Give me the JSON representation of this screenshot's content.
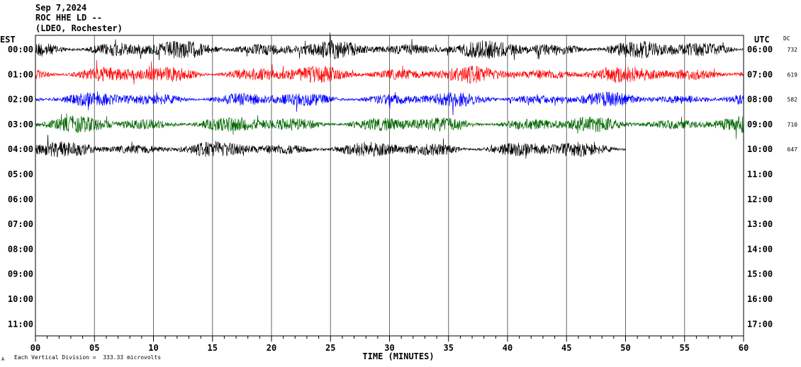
{
  "header": {
    "date": "Sep 7,2024",
    "station": "ROC HHE LD --",
    "location": "(LDEO, Rochester)"
  },
  "left_axis_title": "EST",
  "right_axis_title": "UTC",
  "dc_title": "DC",
  "footer": {
    "scale_note": "Each Vertical Division =  333.33 microvolts",
    "corner_mark": "A"
  },
  "chart_data": {
    "type": "line",
    "title": "",
    "xlabel": "TIME (MINUTES)",
    "xlim": [
      0,
      60
    ],
    "x_ticks": [
      "00",
      "05",
      "10",
      "15",
      "20",
      "25",
      "30",
      "35",
      "40",
      "45",
      "50",
      "55",
      "60"
    ],
    "est_ticks": [
      "00:00",
      "01:00",
      "02:00",
      "03:00",
      "04:00",
      "05:00",
      "06:00",
      "07:00",
      "08:00",
      "09:00",
      "10:00",
      "11:00"
    ],
    "utc_ticks": [
      "06:00",
      "07:00",
      "08:00",
      "09:00",
      "10:00",
      "11:00",
      "12:00",
      "13:00",
      "14:00",
      "15:00",
      "16:00",
      "17:00"
    ],
    "series": [
      {
        "hour_est": "00:00",
        "color": "#000000",
        "dc_offset": "732",
        "minutes_recorded": 60
      },
      {
        "hour_est": "01:00",
        "color": "#ff0000",
        "dc_offset": "619",
        "minutes_recorded": 60
      },
      {
        "hour_est": "02:00",
        "color": "#0000ff",
        "dc_offset": "582",
        "minutes_recorded": 60
      },
      {
        "hour_est": "03:00",
        "color": "#006600",
        "dc_offset": "710",
        "minutes_recorded": 60
      },
      {
        "hour_est": "04:00",
        "color": "#000000",
        "dc_offset": "647",
        "minutes_recorded": 50
      }
    ],
    "grid": "vertical every 5 minutes",
    "vertical_division_uV": 333.33
  }
}
